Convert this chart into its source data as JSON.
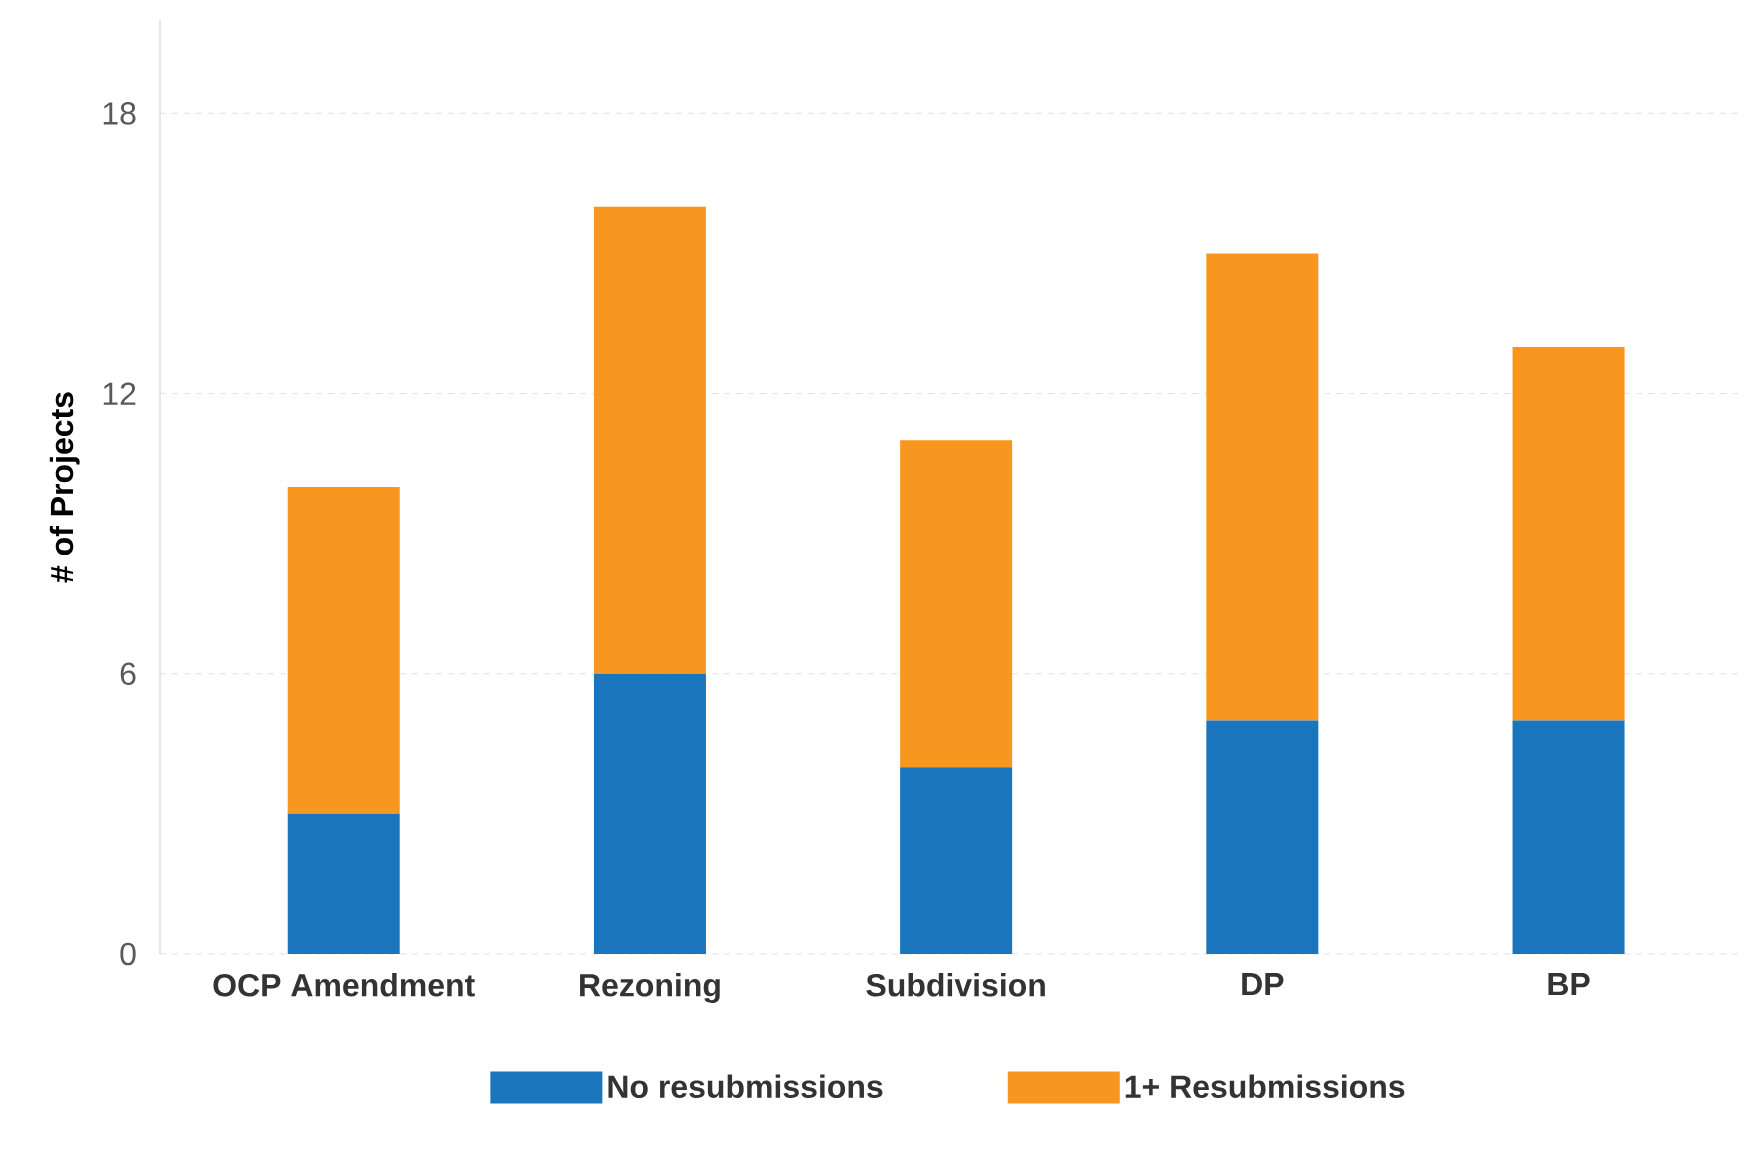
{
  "chart_data": {
    "type": "bar",
    "stacked": true,
    "ylabel": "# of Projects",
    "categories": [
      "OCP Amendment",
      "Rezoning",
      "Subdivision",
      "DP",
      "BP"
    ],
    "series": [
      {
        "name": "No resubmissions",
        "color": "#1a75bc",
        "values": [
          3,
          6,
          4,
          5,
          5
        ]
      },
      {
        "name": "1+ Resubmissions",
        "color": "#f7971f",
        "values": [
          7,
          10,
          7,
          10,
          8
        ]
      }
    ],
    "ylim": [
      0,
      20
    ],
    "yticks": [
      0,
      6,
      12,
      18
    ],
    "grid": "y",
    "legend": "bottom"
  }
}
